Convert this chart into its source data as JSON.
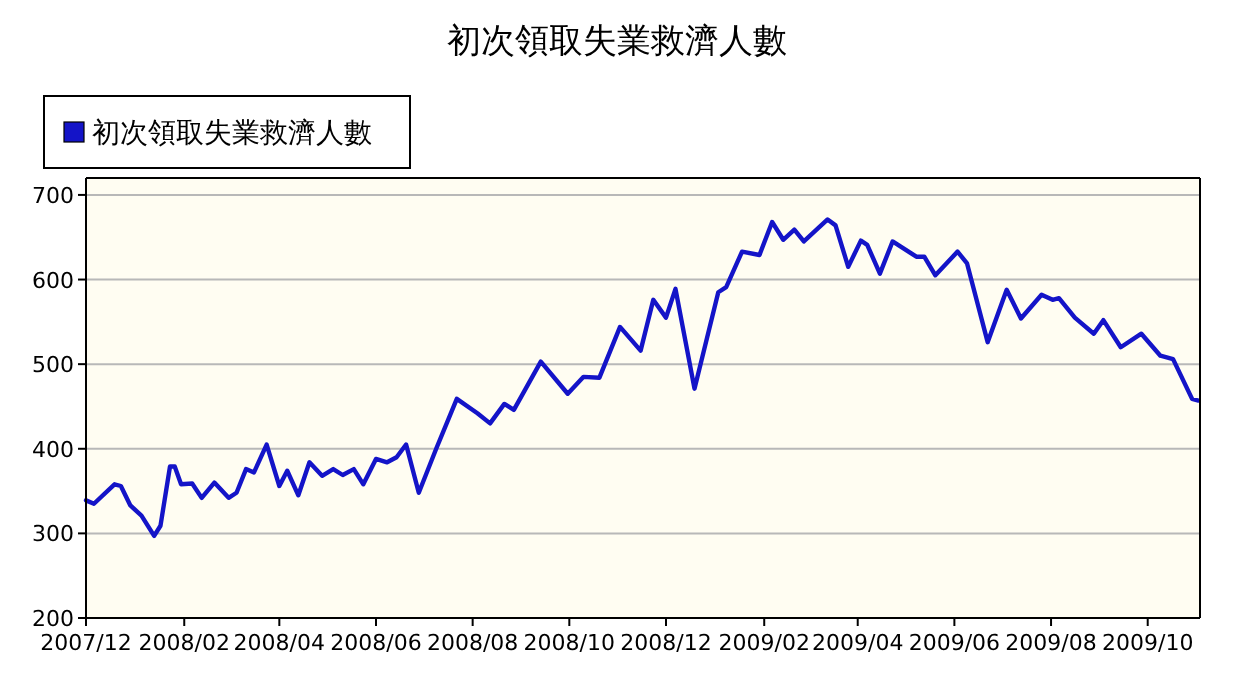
{
  "chart_data": {
    "type": "line",
    "title": "初次領取失業救濟人數",
    "x": [
      "2007-12-01",
      "2007-12-06",
      "2007-12-19",
      "2007-12-23",
      "2007-12-29",
      "2008-01-05",
      "2008-01-13",
      "2008-01-17",
      "2008-01-23",
      "2008-01-26",
      "2008-01-30",
      "2008-02-06",
      "2008-02-12",
      "2008-02-20",
      "2008-02-29",
      "2008-03-05",
      "2008-03-11",
      "2008-03-16",
      "2008-03-24",
      "2008-04-01",
      "2008-04-06",
      "2008-04-13",
      "2008-04-20",
      "2008-04-28",
      "2008-05-05",
      "2008-05-11",
      "2008-05-18",
      "2008-05-24",
      "2008-06-01",
      "2008-06-08",
      "2008-06-14",
      "2008-06-20",
      "2008-06-28",
      "2008-07-09",
      "2008-07-22",
      "2008-08-04",
      "2008-08-12",
      "2008-08-21",
      "2008-08-27",
      "2008-09-13",
      "2008-09-30",
      "2008-10-10",
      "2008-10-20",
      "2008-11-02",
      "2008-11-15",
      "2008-11-23",
      "2008-12-01",
      "2008-12-07",
      "2008-12-19",
      "2009-01-03",
      "2009-01-08",
      "2009-01-18",
      "2009-01-29",
      "2009-02-06",
      "2009-02-13",
      "2009-02-20",
      "2009-02-26",
      "2009-03-13",
      "2009-03-18",
      "2009-03-26",
      "2009-04-03",
      "2009-04-07",
      "2009-04-15",
      "2009-04-23",
      "2009-05-08",
      "2009-05-13",
      "2009-05-20",
      "2009-06-03",
      "2009-06-09",
      "2009-06-22",
      "2009-07-04",
      "2009-07-13",
      "2009-07-26",
      "2009-08-02",
      "2009-08-06",
      "2009-08-16",
      "2009-08-28",
      "2009-09-03",
      "2009-09-14",
      "2009-09-27",
      "2009-10-09",
      "2009-10-17",
      "2009-10-29",
      "2009-11-02"
    ],
    "series": [
      {
        "name": "初次領取失業救濟人數",
        "color": "#1414c8",
        "values": [
          339,
          335,
          358,
          356,
          333,
          321,
          297,
          309,
          379,
          379,
          358,
          359,
          342,
          360,
          342,
          348,
          376,
          372,
          405,
          356,
          374,
          345,
          384,
          368,
          376,
          369,
          376,
          358,
          388,
          384,
          390,
          405,
          348,
          400,
          459,
          442,
          430,
          453,
          446,
          503,
          465,
          485,
          484,
          544,
          516,
          576,
          555,
          589,
          471,
          585,
          591,
          633,
          629,
          668,
          647,
          659,
          645,
          671,
          664,
          615,
          646,
          641,
          607,
          645,
          627,
          627,
          605,
          633,
          619,
          526,
          588,
          554,
          582,
          576,
          578,
          555,
          536,
          552,
          520,
          536,
          510,
          506,
          459,
          457
        ]
      }
    ],
    "xlim": [
      "2007-12-01",
      "2009-11-03"
    ],
    "xticks": [
      {
        "value": "2007-12",
        "label": "2007/12"
      },
      {
        "value": "2008-02",
        "label": "2008/02"
      },
      {
        "value": "2008-04",
        "label": "2008/04"
      },
      {
        "value": "2008-06",
        "label": "2008/06"
      },
      {
        "value": "2008-08",
        "label": "2008/08"
      },
      {
        "value": "2008-10",
        "label": "2008/10"
      },
      {
        "value": "2008-12",
        "label": "2008/12"
      },
      {
        "value": "2009-02",
        "label": "2009/02"
      },
      {
        "value": "2009-04",
        "label": "2009/04"
      },
      {
        "value": "2009-06",
        "label": "2009/06"
      },
      {
        "value": "2009-08",
        "label": "2009/08"
      },
      {
        "value": "2009-10",
        "label": "2009/10"
      }
    ],
    "ylim": [
      200,
      720
    ],
    "yticks": [
      200,
      300,
      400,
      500,
      600,
      700
    ],
    "grid": "y",
    "legend": "top left",
    "marker": "none",
    "line_style": "solid"
  }
}
